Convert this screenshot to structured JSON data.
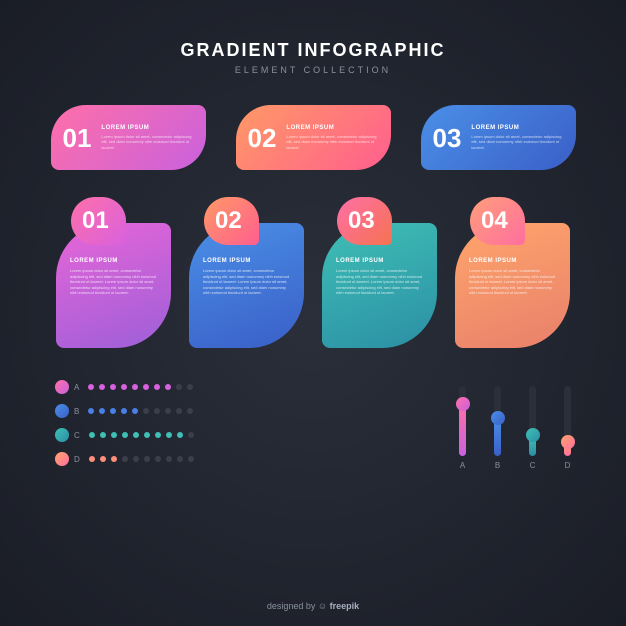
{
  "header": {
    "title": "GRADIENT INFOGRAPHIC",
    "subtitle": "ELEMENT COLLECTION"
  },
  "lorem_title": "LOREM IPSUM",
  "lorem_body": "Lorem ipsum dolor sit amet, consectetur adipiscing elit, sed diam nonummy nibh euismod tincidunt ut laoreet.",
  "pills": [
    {
      "num": "01",
      "g1": "#ff6fa8",
      "g2": "#c961de"
    },
    {
      "num": "02",
      "g1": "#ff9966",
      "g2": "#ff5e8e"
    },
    {
      "num": "03",
      "g1": "#4a8fe7",
      "g2": "#3a5fc7"
    }
  ],
  "leaves": [
    {
      "num": "01",
      "blob_g1": "#ff6fa8",
      "blob_g2": "#d861de",
      "body_g1": "#e865d8",
      "body_g2": "#9d5fd8"
    },
    {
      "num": "02",
      "blob_g1": "#ff9966",
      "blob_g2": "#ff5e8e",
      "body_g1": "#4a8fe7",
      "body_g2": "#3a5fc7"
    },
    {
      "num": "03",
      "blob_g1": "#ff6fa8",
      "blob_g2": "#f57250",
      "body_g1": "#3fbfb5",
      "body_g2": "#2b8fa5"
    },
    {
      "num": "04",
      "blob_g1": "#ff9e7a",
      "blob_g2": "#ff6f9e",
      "body_g1": "#ffa56b",
      "body_g2": "#e8806b"
    }
  ],
  "dots": [
    {
      "label": "A",
      "marker_g1": "#ff6fa8",
      "marker_g2": "#c961de",
      "count": 10,
      "filled": 8,
      "fill_color": "#d861de",
      "empty_color": "#3a3f4a"
    },
    {
      "label": "B",
      "marker_g1": "#4a8fe7",
      "marker_g2": "#3a5fc7",
      "count": 10,
      "filled": 5,
      "fill_color": "#4a7fe7",
      "empty_color": "#3a3f4a"
    },
    {
      "label": "C",
      "marker_g1": "#3fbfb5",
      "marker_g2": "#2b8fa5",
      "count": 10,
      "filled": 9,
      "fill_color": "#3fbfb5",
      "empty_color": "#3a3f4a"
    },
    {
      "label": "D",
      "marker_g1": "#ffa56b",
      "marker_g2": "#ff6f9e",
      "count": 10,
      "filled": 3,
      "fill_color": "#ff8f7a",
      "empty_color": "#3a3f4a"
    }
  ],
  "bars": [
    {
      "label": "A",
      "pct": 75,
      "g1": "#ff6fa8",
      "g2": "#c961de"
    },
    {
      "label": "B",
      "pct": 55,
      "g1": "#4a8fe7",
      "g2": "#3a5fc7"
    },
    {
      "label": "C",
      "pct": 30,
      "g1": "#3fbfb5",
      "g2": "#2b8fa5"
    },
    {
      "label": "D",
      "pct": 20,
      "g1": "#ffa56b",
      "g2": "#ff6f9e"
    }
  ],
  "footer": {
    "prefix": "designed by",
    "brand": "freepik"
  }
}
